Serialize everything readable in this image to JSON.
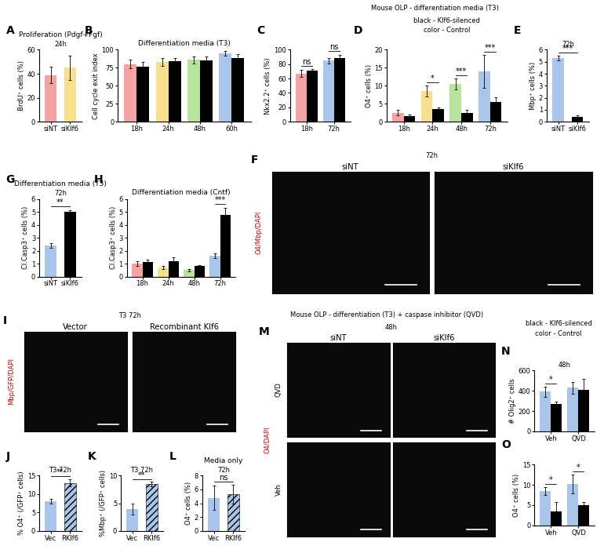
{
  "chart_data": [
    {
      "panel": "A",
      "type": "bar",
      "title": "Proliferation (Pdgf+Fgf)",
      "subtitle": "24h",
      "y_label": "BrdU⁺ cells (%)",
      "categories": [
        "siNT",
        "siKlf6"
      ],
      "values": [
        39,
        45
      ],
      "errors": [
        7,
        10
      ],
      "colors": [
        "#f4a3a3",
        "#f7e08c"
      ],
      "ylim": [
        0,
        60
      ],
      "yticks": [
        0,
        20,
        40,
        60
      ]
    },
    {
      "panel": "B",
      "type": "grouped_bar",
      "title": "Differentiation media (T3)",
      "y_label": "Cell cycle exit index",
      "categories": [
        "18h",
        "24h",
        "48h",
        "60h"
      ],
      "series": [
        {
          "colors": [
            "#f4a3a3",
            "#f7e08c",
            "#b7e49b",
            "#a9c6ea"
          ],
          "values": [
            80,
            83,
            86,
            95
          ],
          "errors": [
            6,
            5,
            5,
            3
          ]
        },
        {
          "color": "#000000",
          "values": [
            76,
            84,
            85,
            89
          ],
          "errors": [
            7,
            5,
            6,
            5
          ]
        }
      ],
      "ylim": [
        0,
        100
      ],
      "yticks": [
        0,
        25,
        50,
        75,
        100
      ]
    },
    {
      "panel": "C",
      "type": "grouped_bar",
      "y_label": "Nkx2.2⁺ cells (%)",
      "categories": [
        "18h",
        "72h"
      ],
      "series": [
        {
          "colors": [
            "#f4a3a3",
            "#a9c6ea"
          ],
          "values": [
            67,
            85
          ],
          "errors": [
            5,
            4
          ]
        },
        {
          "color": "#000000",
          "values": [
            71,
            88
          ],
          "errors": [
            2,
            5
          ]
        }
      ],
      "annotations": [
        "ns",
        "ns"
      ],
      "ylim": [
        0,
        100
      ],
      "yticks": [
        0,
        20,
        40,
        60,
        80,
        100
      ]
    },
    {
      "panel": "D",
      "type": "grouped_bar",
      "y_label": "O4⁺ cells (%)",
      "categories": [
        "18h",
        "24h",
        "48h",
        "72h"
      ],
      "series": [
        {
          "colors": [
            "#f4a3a3",
            "#f7e08c",
            "#b7e49b",
            "#a9c6ea"
          ],
          "values": [
            2.5,
            8.5,
            10.5,
            14
          ],
          "errors": [
            0.8,
            1.5,
            1.5,
            4.5
          ]
        },
        {
          "color": "#000000",
          "values": [
            1.5,
            3.5,
            2.5,
            5.5
          ],
          "errors": [
            0.5,
            0.5,
            0.8,
            1.2
          ]
        }
      ],
      "annotations": [
        null,
        "*",
        "***",
        "***"
      ],
      "ylim": [
        0,
        20
      ],
      "yticks": [
        0,
        5,
        10,
        15,
        20
      ]
    },
    {
      "panel": "E",
      "type": "bar",
      "subtitle": "72h",
      "y_label": "Mbp⁺ cells (%)",
      "categories": [
        "siNT",
        "siKlf6"
      ],
      "values": [
        5.3,
        0.4
      ],
      "errors": [
        0.2,
        0.1
      ],
      "colors": [
        "#a9c6ea",
        "#000000"
      ],
      "annotations": "***",
      "ylim": [
        0,
        6
      ],
      "yticks": [
        0,
        1,
        2,
        3,
        4,
        5,
        6
      ]
    },
    {
      "panel": "G",
      "type": "bar",
      "title": "Differentiation media (T3)",
      "subtitle": "72h",
      "y_label": "Cl.Casp3⁺ cells (%)",
      "categories": [
        "siNT",
        "siKlf6"
      ],
      "values": [
        2.4,
        5.0
      ],
      "errors": [
        0.2,
        0.15
      ],
      "colors": [
        "#a9c6ea",
        "#000000"
      ],
      "annotations": "**",
      "ylim": [
        0,
        6
      ],
      "yticks": [
        0,
        1,
        2,
        3,
        4,
        5,
        6
      ]
    },
    {
      "panel": "H",
      "type": "grouped_bar",
      "title": "Differentiation media (Cntf)",
      "y_label": "Cl.Casp3⁺ cells (%)",
      "categories": [
        "18h",
        "24h",
        "48h",
        "72h"
      ],
      "series": [
        {
          "colors": [
            "#f4a3a3",
            "#f7e08c",
            "#b7e49b",
            "#a9c6ea"
          ],
          "values": [
            1.0,
            0.7,
            0.5,
            1.6
          ],
          "errors": [
            0.2,
            0.1,
            0.1,
            0.2
          ]
        },
        {
          "color": "#000000",
          "values": [
            1.1,
            1.2,
            0.8,
            4.8
          ],
          "errors": [
            0.2,
            0.3,
            0.1,
            0.5
          ]
        }
      ],
      "annotations": [
        null,
        null,
        null,
        "***"
      ],
      "ylim": [
        0,
        6
      ],
      "yticks": [
        0,
        1,
        2,
        3,
        4,
        5,
        6
      ]
    },
    {
      "panel": "J",
      "type": "bar",
      "subtitle": "T3 72h",
      "y_label": "% O4⁺ (/GFP⁺ cells)",
      "categories": [
        "Vec",
        "RKlf6"
      ],
      "values": [
        8,
        13
      ],
      "errors": [
        0.7,
        1.0
      ],
      "colors": [
        "#a9c6ea",
        "#a9c6ea"
      ],
      "annotations": "**",
      "ylim": [
        0,
        15
      ],
      "yticks": [
        0,
        5,
        10,
        15
      ]
    },
    {
      "panel": "K",
      "type": "bar",
      "subtitle": "T3 72h",
      "y_label": "%Mbp⁺ (/GFP⁺ cells)",
      "categories": [
        "Vec",
        "RKlf6"
      ],
      "values": [
        4,
        8.5
      ],
      "errors": [
        1.0,
        0.4
      ],
      "colors": [
        "#a9c6ea",
        "#a9c6ea"
      ],
      "annotations": "**",
      "ylim": [
        0,
        10
      ],
      "yticks": [
        0,
        5,
        10
      ]
    },
    {
      "panel": "L",
      "type": "bar",
      "title": "Media only",
      "subtitle": "72h",
      "y_label": "O4⁺ cells (%)",
      "categories": [
        "Vec",
        "RKlf6"
      ],
      "values": [
        4.8,
        5.3
      ],
      "errors": [
        1.8,
        1.4
      ],
      "colors": [
        "#a9c6ea",
        "#a9c6ea"
      ],
      "annotations": "ns",
      "ylim": [
        0,
        8
      ],
      "yticks": [
        0,
        2,
        4,
        6,
        8
      ]
    },
    {
      "panel": "N",
      "type": "grouped_bar",
      "subtitle": "48h",
      "y_label": "# Olig2⁺ cells",
      "categories": [
        "Veh",
        "QVD"
      ],
      "series": [
        {
          "colors": [
            "#a9c6ea",
            "#a9c6ea"
          ],
          "values": [
            390,
            430
          ],
          "errors": [
            50,
            60
          ]
        },
        {
          "color": "#000000",
          "values": [
            270,
            410
          ],
          "errors": [
            20,
            110
          ]
        }
      ],
      "annotations": [
        "*",
        null
      ],
      "ylim": [
        0,
        600
      ],
      "yticks": [
        0,
        200,
        400,
        600
      ]
    },
    {
      "panel": "O",
      "type": "grouped_bar",
      "y_label": "O4⁺ cells (%)",
      "categories": [
        "Veh",
        "QVD"
      ],
      "series": [
        {
          "colors": [
            "#a9c6ea",
            "#a9c6ea"
          ],
          "values": [
            8.5,
            10.2
          ],
          "errors": [
            1.0,
            2.3
          ]
        },
        {
          "color": "#000000",
          "values": [
            3.5,
            5.0
          ],
          "errors": [
            2.2,
            0.8
          ]
        }
      ],
      "annotations": [
        "*",
        "*"
      ],
      "ylim": [
        0,
        15
      ],
      "yticks": [
        0,
        5,
        10,
        15
      ]
    }
  ],
  "images": [
    {
      "panel": "F",
      "title": "72h",
      "columns": [
        "siNT",
        "siKlf6"
      ],
      "rows": [],
      "channels": "O4/Mbp/DAPI"
    },
    {
      "panel": "I",
      "title": "T3 72h",
      "columns": [
        "Vector",
        "Recombinant Klf6"
      ],
      "rows": [],
      "channels": "Mbp/GFP/DAPI"
    },
    {
      "panel": "M",
      "title": "48h",
      "columns": [
        "siNT",
        "siKlf6"
      ],
      "rows": [
        "QVD",
        "Veh"
      ],
      "channels": "O4/DAPI"
    }
  ],
  "figure_texts": [
    "Mouse OLP - differentiation media (T3)",
    "black - Klf6-silenced",
    "color - Control",
    "Mouse OLP - differentiation (T3) + caspase inhibitor (QVD)",
    "black - Klf6-silenced",
    "color - Control"
  ]
}
